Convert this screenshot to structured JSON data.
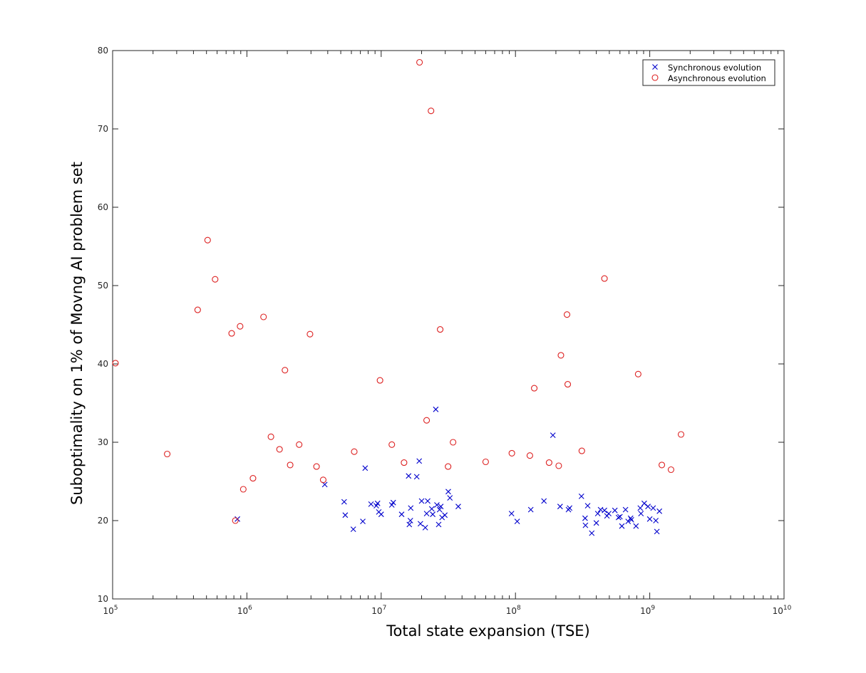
{
  "chart_data": {
    "type": "scatter",
    "title": "",
    "xlabel": "Total state expansion (TSE)",
    "ylabel": "Suboptimality on 1% of Movng AI problem set",
    "xscale": "log",
    "xlim": [
      100000,
      10000000000
    ],
    "ylim": [
      10,
      80
    ],
    "y_ticks": [
      10,
      20,
      30,
      40,
      50,
      60,
      70,
      80
    ],
    "x_ticks": [
      {
        "value": 100000,
        "base": "10",
        "exp": "5"
      },
      {
        "value": 1000000,
        "base": "10",
        "exp": "6"
      },
      {
        "value": 10000000,
        "base": "10",
        "exp": "7"
      },
      {
        "value": 100000000,
        "base": "10",
        "exp": "8"
      },
      {
        "value": 1000000000,
        "base": "10",
        "exp": "9"
      },
      {
        "value": 10000000000,
        "base": "10",
        "exp": "10"
      }
    ],
    "grid": false,
    "legend_position": "top-right",
    "series": [
      {
        "name": "Synchronous evolution",
        "marker": "x",
        "color": "#0000cc",
        "points": [
          [
            850000,
            20.2
          ],
          [
            3800000,
            24.6
          ],
          [
            5300000,
            22.4
          ],
          [
            5400000,
            20.7
          ],
          [
            6200000,
            18.9
          ],
          [
            7300000,
            19.9
          ],
          [
            7600000,
            26.7
          ],
          [
            8400000,
            22.1
          ],
          [
            9200000,
            21.9
          ],
          [
            9400000,
            22.2
          ],
          [
            9600000,
            21.1
          ],
          [
            10000000,
            20.8
          ],
          [
            12000000,
            22.0
          ],
          [
            12300000,
            22.3
          ],
          [
            14200000,
            20.8
          ],
          [
            16000000,
            25.7
          ],
          [
            16200000,
            19.5
          ],
          [
            16500000,
            20.0
          ],
          [
            16600000,
            21.6
          ],
          [
            18400000,
            25.6
          ],
          [
            19200000,
            27.6
          ],
          [
            19600000,
            19.6
          ],
          [
            20000000,
            22.5
          ],
          [
            21300000,
            19.1
          ],
          [
            21800000,
            20.9
          ],
          [
            22200000,
            22.5
          ],
          [
            23800000,
            21.5
          ],
          [
            24200000,
            20.8
          ],
          [
            25500000,
            34.2
          ],
          [
            26000000,
            22.0
          ],
          [
            26800000,
            19.5
          ],
          [
            27200000,
            21.4
          ],
          [
            27800000,
            21.8
          ],
          [
            28400000,
            20.4
          ],
          [
            29800000,
            20.7
          ],
          [
            31600000,
            23.7
          ],
          [
            32500000,
            22.9
          ],
          [
            37500000,
            21.8
          ],
          [
            93500000,
            20.9
          ],
          [
            103000000,
            19.9
          ],
          [
            130000000,
            21.4
          ],
          [
            163000000,
            22.5
          ],
          [
            190000000,
            30.9
          ],
          [
            215000000,
            21.8
          ],
          [
            248000000,
            21.4
          ],
          [
            253000000,
            21.6
          ],
          [
            310000000,
            23.1
          ],
          [
            330000000,
            20.3
          ],
          [
            332000000,
            19.4
          ],
          [
            345000000,
            21.9
          ],
          [
            370000000,
            18.4
          ],
          [
            400000000,
            19.7
          ],
          [
            410000000,
            20.9
          ],
          [
            430000000,
            21.4
          ],
          [
            460000000,
            21.3
          ],
          [
            480000000,
            20.6
          ],
          [
            495000000,
            20.9
          ],
          [
            550000000,
            21.3
          ],
          [
            585000000,
            20.4
          ],
          [
            600000000,
            20.5
          ],
          [
            620000000,
            19.3
          ],
          [
            660000000,
            21.4
          ],
          [
            690000000,
            19.9
          ],
          [
            720000000,
            20.3
          ],
          [
            730000000,
            20.1
          ],
          [
            790000000,
            19.3
          ],
          [
            850000000,
            21.6
          ],
          [
            860000000,
            20.9
          ],
          [
            910000000,
            22.2
          ],
          [
            970000000,
            21.8
          ],
          [
            1000000000,
            20.2
          ],
          [
            1060000000,
            21.6
          ],
          [
            1110000000,
            20.0
          ],
          [
            1130000000,
            18.6
          ],
          [
            1180000000,
            21.2
          ]
        ]
      },
      {
        "name": "Asynchronous evolution",
        "marker": "o",
        "color": "#dd2222",
        "points": [
          [
            105000,
            40.1
          ],
          [
            255000,
            28.5
          ],
          [
            430000,
            46.9
          ],
          [
            510000,
            55.8
          ],
          [
            580000,
            50.8
          ],
          [
            770000,
            43.9
          ],
          [
            820000,
            20.0
          ],
          [
            890000,
            44.8
          ],
          [
            940000,
            24.0
          ],
          [
            1110000,
            25.4
          ],
          [
            1330000,
            46.0
          ],
          [
            1510000,
            30.7
          ],
          [
            1750000,
            29.1
          ],
          [
            1920000,
            39.2
          ],
          [
            2100000,
            27.1
          ],
          [
            2450000,
            29.7
          ],
          [
            2950000,
            43.8
          ],
          [
            3300000,
            26.9
          ],
          [
            3700000,
            25.2
          ],
          [
            6300000,
            28.8
          ],
          [
            9800000,
            37.9
          ],
          [
            12000000,
            29.7
          ],
          [
            14800000,
            27.4
          ],
          [
            19300000,
            78.5
          ],
          [
            21800000,
            32.8
          ],
          [
            23500000,
            72.3
          ],
          [
            27500000,
            44.4
          ],
          [
            31500000,
            26.9
          ],
          [
            34300000,
            30.0
          ],
          [
            60000000,
            27.5
          ],
          [
            94000000,
            28.6
          ],
          [
            128000000,
            28.3
          ],
          [
            138000000,
            36.9
          ],
          [
            178000000,
            27.4
          ],
          [
            210000000,
            27.0
          ],
          [
            218000000,
            41.1
          ],
          [
            242000000,
            46.3
          ],
          [
            245000000,
            37.4
          ],
          [
            312000000,
            28.9
          ],
          [
            460000000,
            50.9
          ],
          [
            820000000,
            38.7
          ],
          [
            1230000000,
            27.1
          ],
          [
            1440000000,
            26.5
          ],
          [
            1710000000,
            31.0
          ]
        ]
      }
    ]
  }
}
